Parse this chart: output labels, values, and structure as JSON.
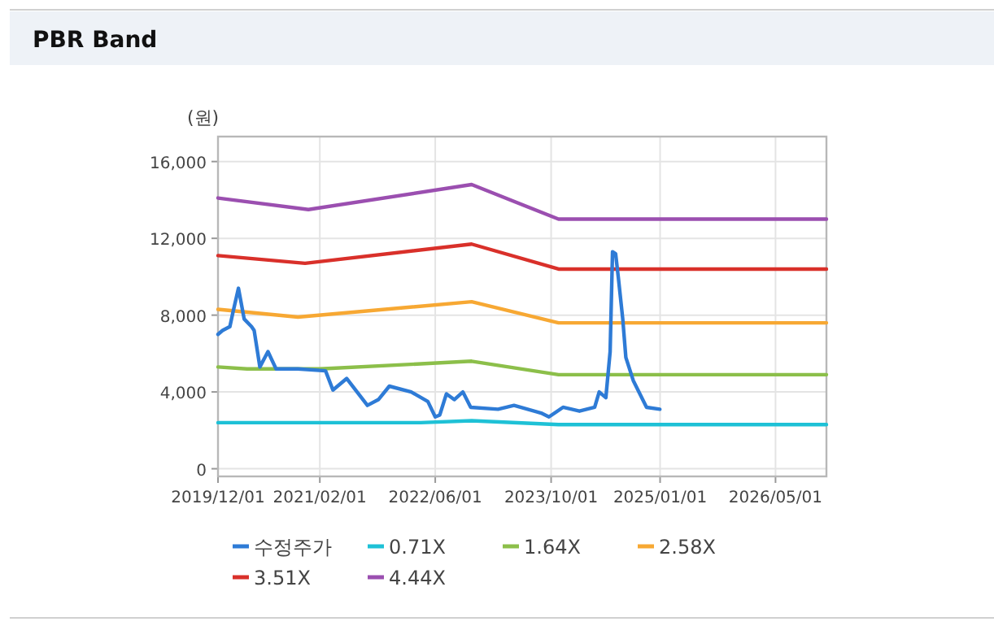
{
  "chart_data": {
    "type": "line",
    "title": "PBR Band",
    "ylabel": "(원)",
    "xlim": [
      "2019-12-01",
      "2026-12-01"
    ],
    "xticks": [
      {
        "value": "2019-12-01",
        "label": "2019/12/01"
      },
      {
        "value": "2021-02-01",
        "label": "2021/02/01"
      },
      {
        "value": "2022-06-01",
        "label": "2022/06/01"
      },
      {
        "value": "2023-10-01",
        "label": "2023/10/01"
      },
      {
        "value": "2025-01-01",
        "label": "2025/01/01"
      },
      {
        "value": "2026-05-01",
        "label": "2026/05/01"
      }
    ],
    "ylim": [
      -400,
      17300
    ],
    "yticks": [
      0,
      {
        "value": 4000,
        "label": "4,000"
      },
      {
        "value": 8000,
        "label": "8,000"
      },
      {
        "value": 12000,
        "label": "12,000"
      },
      {
        "value": 16000,
        "label": "16,000"
      }
    ],
    "grid": true,
    "legend": "bottom",
    "marker": "none",
    "line_style": "solid",
    "series": [
      {
        "name": "수정주가",
        "color": "#2e7bd6",
        "x": [
          "2019-12-01",
          "2019-12-20",
          "2020-01-20",
          "2020-02-01",
          "2020-02-25",
          "2020-03-20",
          "2020-04-20",
          "2020-05-01",
          "2020-05-25",
          "2020-06-28",
          "2020-08-01",
          "2020-11-01",
          "2021-02-25",
          "2021-03-28",
          "2021-05-25",
          "2021-08-20",
          "2021-10-05",
          "2021-11-20",
          "2022-02-20",
          "2022-05-01",
          "2022-06-01",
          "2022-06-20",
          "2022-07-18",
          "2022-08-20",
          "2022-09-25",
          "2022-10-28",
          "2023-02-20",
          "2023-04-28",
          "2023-08-20",
          "2023-09-22",
          "2023-11-20",
          "2024-01-28",
          "2024-04-01",
          "2024-04-20",
          "2024-05-18",
          "2024-06-05",
          "2024-06-15",
          "2024-06-28",
          "2024-07-10",
          "2024-07-28",
          "2024-08-10",
          "2024-09-10",
          "2024-11-05",
          "2024-12-31"
        ],
        "values": [
          7000,
          7200,
          7400,
          8100,
          9400,
          7800,
          7400,
          7200,
          5300,
          6100,
          5200,
          5200,
          5100,
          4100,
          4700,
          3300,
          3600,
          4300,
          4000,
          3500,
          2700,
          2800,
          3900,
          3600,
          4000,
          3200,
          3100,
          3300,
          2900,
          2700,
          3200,
          3000,
          3200,
          4000,
          3700,
          6100,
          11300,
          11200,
          9900,
          7800,
          5800,
          4600,
          3200,
          3100
        ]
      },
      {
        "name": "0.71X",
        "color": "#1ec1d6",
        "x": [
          "2019-12-01",
          "2022-03-01",
          "2022-04-01",
          "2022-11-01",
          "2023-11-01",
          "2026-12-01"
        ],
        "values": [
          2400,
          2400,
          2400,
          2500,
          2300,
          2300
        ]
      },
      {
        "name": "1.64X",
        "color": "#8cbf4a",
        "x": [
          "2019-12-01",
          "2020-04-01",
          "2021-02-01",
          "2022-11-01",
          "2023-11-01",
          "2026-12-01"
        ],
        "values": [
          5300,
          5200,
          5200,
          5600,
          4900,
          4900
        ]
      },
      {
        "name": "2.58X",
        "color": "#f7a833",
        "x": [
          "2019-12-01",
          "2020-11-01",
          "2022-11-01",
          "2023-11-01",
          "2026-12-01"
        ],
        "values": [
          8300,
          7900,
          8700,
          7600,
          7600
        ]
      },
      {
        "name": "3.51X",
        "color": "#d9302a",
        "x": [
          "2019-12-01",
          "2020-12-01",
          "2022-11-01",
          "2023-11-01",
          "2026-12-01"
        ],
        "values": [
          11100,
          10700,
          11700,
          10400,
          10400
        ]
      },
      {
        "name": "4.44X",
        "color": "#9b4fb0",
        "x": [
          "2019-12-01",
          "2020-12-15",
          "2022-11-01",
          "2023-11-01",
          "2026-12-01"
        ],
        "values": [
          14100,
          13500,
          14800,
          13000,
          13000
        ]
      }
    ]
  }
}
